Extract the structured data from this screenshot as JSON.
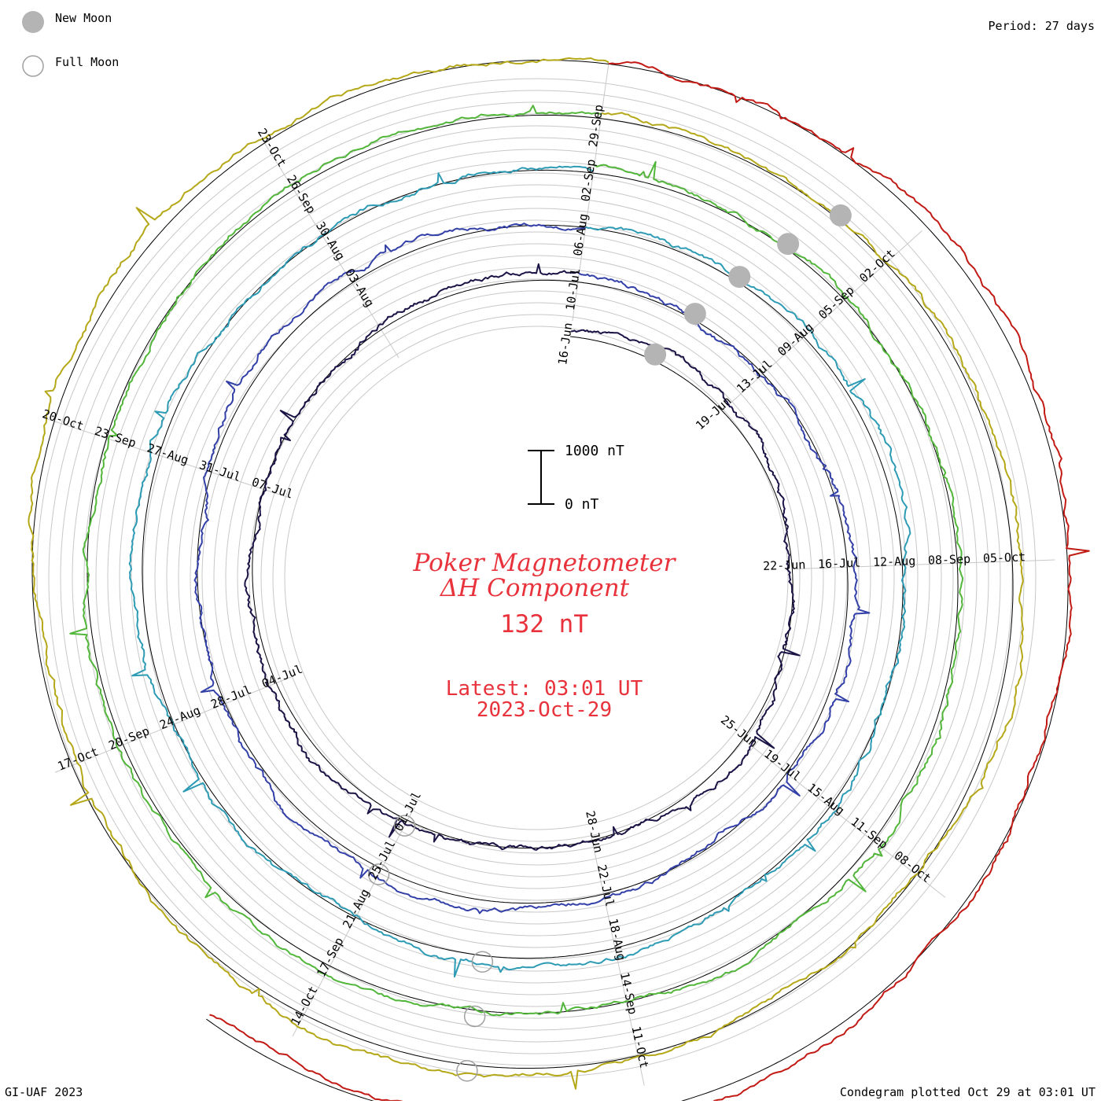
{
  "legend": {
    "new_moon": "New Moon",
    "full_moon": "Full Moon"
  },
  "period_label": "Period: 27 days",
  "credit": "GI-UAF 2023",
  "footer": "Condegram plotted Oct 29 at 03:01 UT",
  "scale_bar": {
    "top_label": "1000 nT",
    "bottom_label": "0 nT"
  },
  "center": {
    "title_line1": "Poker Magnetometer",
    "title_line2": "ΔH Component",
    "value": "132 nT",
    "latest_label": "Latest: 03:01 UT",
    "latest_date": "2023-Oct-29"
  },
  "colors": {
    "text_red": "#e8323c",
    "grid": "#c8c8c8",
    "baseline": "#000000",
    "moon_new": "#b4b4b4",
    "moon_full": "#a0a0a0"
  },
  "chart_data": {
    "type": "line",
    "title": "Poker Magnetometer ΔH Component",
    "period_days": 27,
    "series": [
      {
        "color": "#1a1446",
        "ticks": [
          "16-Jun",
          "19-Jun",
          "22-Jun",
          "25-Jun",
          "28-Jun",
          "01-Jul",
          "04-Jul",
          "07-Jul"
        ]
      },
      {
        "color": "#3340a8",
        "ticks": [
          "10-Jul",
          "13-Jul",
          "16-Jul",
          "19-Jul",
          "22-Jul",
          "25-Jul",
          "28-Jul",
          "31-Jul",
          "03-Aug"
        ]
      },
      {
        "color": "#2e9bb5",
        "ticks": [
          "06-Aug",
          "09-Aug",
          "12-Aug",
          "15-Aug",
          "18-Aug",
          "21-Aug",
          "24-Aug",
          "27-Aug",
          "30-Aug"
        ]
      },
      {
        "color": "#52b63a",
        "ticks": [
          "02-Sep",
          "05-Sep",
          "08-Sep",
          "11-Sep",
          "14-Sep",
          "17-Sep",
          "20-Sep",
          "23-Sep",
          "26-Sep"
        ]
      },
      {
        "color": "#b5a818",
        "ticks": [
          "29-Sep",
          "02-Oct",
          "05-Oct",
          "08-Oct",
          "11-Oct",
          "14-Oct",
          "17-Oct",
          "20-Oct",
          "23-Oct"
        ]
      },
      {
        "color": "#c21a14",
        "ticks": []
      }
    ],
    "new_moons": [
      "17-Jun",
      "17-Jul",
      "16-Aug",
      "15-Sep",
      "14-Oct"
    ],
    "full_moons": [
      "03-Jul",
      "01-Aug",
      "31-Aug",
      "29-Sep",
      "28-Oct"
    ],
    "latest_value_nT": 132,
    "scale_nT": [
      0,
      1000
    ]
  }
}
